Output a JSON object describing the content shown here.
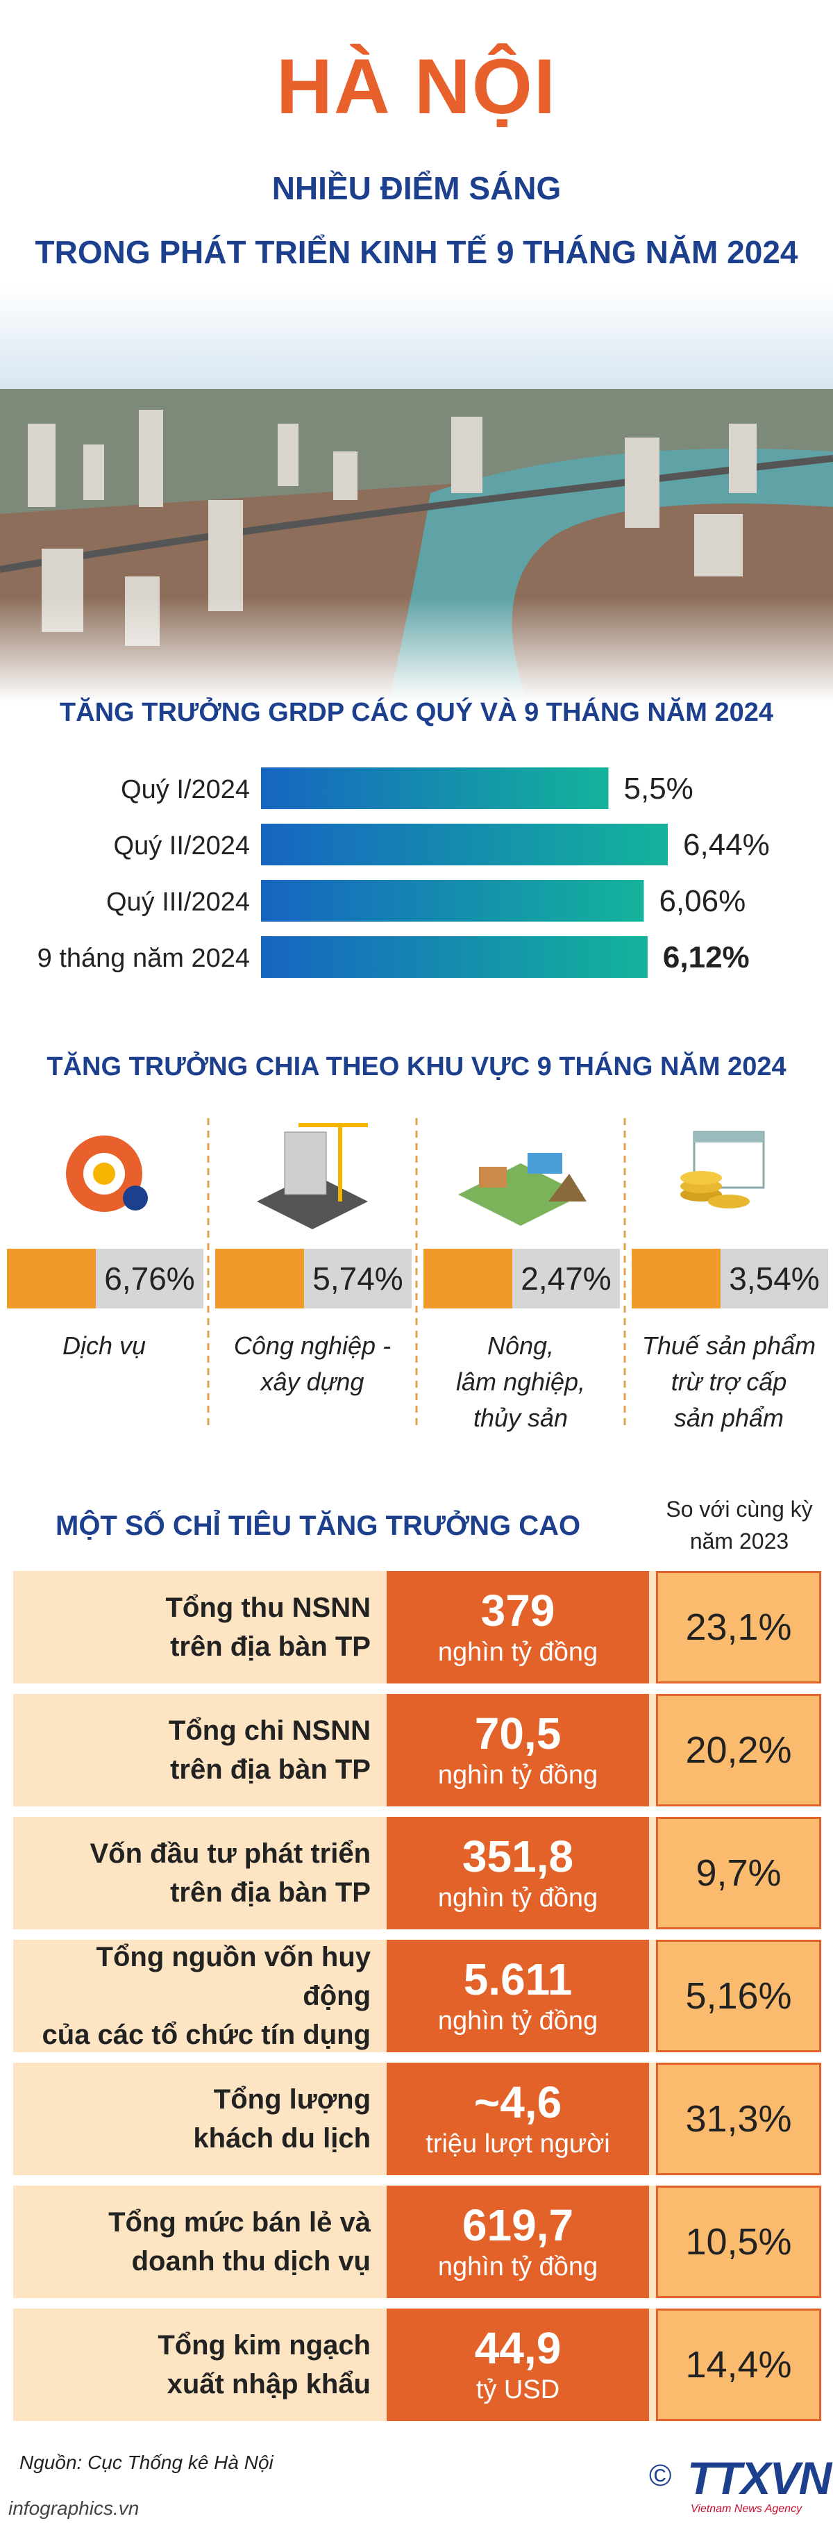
{
  "header": {
    "title": "HÀ NỘI",
    "subtitle": [
      "NHIỀU ĐIỂM SÁNG",
      "TRONG PHÁT TRIỂN KINH TẾ 9 THÁNG NĂM 2024"
    ]
  },
  "chart_data": {
    "type": "bar",
    "orientation": "horizontal",
    "title": "TĂNG TRƯỞNG GRDP CÁC QUÝ VÀ 9 THÁNG NĂM 2024",
    "categories": [
      "Quý I/2024",
      "Quý II/2024",
      "Quý III/2024",
      "9 tháng năm 2024"
    ],
    "values": [
      5.5,
      6.44,
      6.06,
      6.12
    ],
    "value_labels": [
      "5,5%",
      "6,44%",
      "6,06%",
      "6,12%"
    ],
    "color": [
      "#1665c1",
      "#14b39b"
    ]
  },
  "sectors": {
    "title": "TĂNG TRƯỞNG CHIA THEO KHU VỰC 9 THÁNG NĂM 2024",
    "items": [
      {
        "value": "6,76%",
        "label": [
          "Dịch vụ"
        ]
      },
      {
        "value": "5,74%",
        "label": [
          "Công nghiệp -",
          "xây dựng"
        ]
      },
      {
        "value": "2,47%",
        "label": [
          "Nông,",
          "lâm nghiệp,",
          "thủy sản"
        ]
      },
      {
        "value": "3,54%",
        "label": [
          "Thuế sản phẩm",
          "trừ trợ cấp",
          "sản phẩm"
        ]
      }
    ]
  },
  "indicators": {
    "title": "MỘT SỐ CHỈ TIÊU TĂNG TRƯỞNG CAO",
    "compare_header": [
      "So với cùng kỳ",
      "năm 2023"
    ],
    "rows": [
      {
        "label": [
          "Tổng thu NSNN",
          "trên địa bàn TP"
        ],
        "amount": "379",
        "unit": "nghìn tỷ đồng",
        "change": "23,1%"
      },
      {
        "label": [
          "Tổng chi NSNN",
          "trên địa bàn TP"
        ],
        "amount": "70,5",
        "unit": "nghìn tỷ đồng",
        "change": "20,2%"
      },
      {
        "label": [
          "Vốn đầu tư phát triển",
          "trên địa bàn TP"
        ],
        "amount": "351,8",
        "unit": "nghìn tỷ đồng",
        "change": "9,7%"
      },
      {
        "label": [
          "Tổng nguồn vốn huy động",
          "của các tổ chức tín dụng"
        ],
        "amount": "5.611",
        "unit": "nghìn tỷ đồng",
        "change": "5,16%"
      },
      {
        "label": [
          "Tổng lượng",
          "khách du lịch"
        ],
        "amount": "~4,6",
        "unit": "triệu lượt người",
        "change": "31,3%"
      },
      {
        "label": [
          "Tổng mức bán lẻ và",
          "doanh thu dịch vụ"
        ],
        "amount": "619,7",
        "unit": "nghìn tỷ đồng",
        "change": "10,5%"
      },
      {
        "label": [
          "Tổng kim ngạch",
          "xuất nhập khẩu"
        ],
        "amount": "44,9",
        "unit": "tỷ USD",
        "change": "14,4%"
      }
    ]
  },
  "footer": {
    "source": "Nguồn: Cục Thống kê Hà Nội",
    "site": "infographics.vn",
    "copyright": "©",
    "logo": "TTXVN",
    "logo_sub": "Vietnam News Agency"
  }
}
